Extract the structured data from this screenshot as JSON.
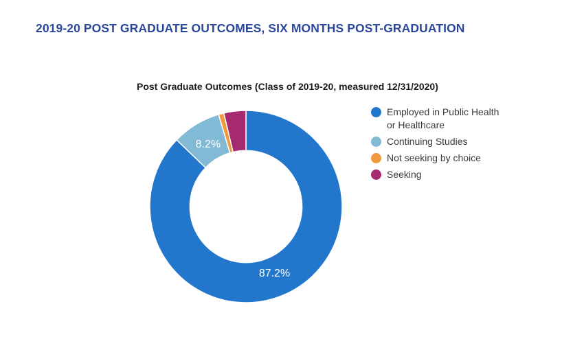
{
  "page_title": "2019-20 POST GRADUATE OUTCOMES, SIX MONTHS POST-GRADUATION",
  "colors": {
    "background": "#ffffff",
    "page_title": "#2a479c",
    "chart_title": "#1c1c1c",
    "legend_text": "#3b3b3b",
    "data_label_text": "#ffffff",
    "segment_separator": "#ffffff"
  },
  "chart_data": {
    "type": "pie",
    "subtype": "donut",
    "title": "Post Graduate Outcomes (Class of 2019-20, measured 12/31/2020)",
    "categories": [
      "Employed in Public Health or Healthcare",
      "Continuing Studies",
      "Not seeking by choice",
      "Seeking"
    ],
    "values": [
      87.2,
      8.2,
      0.9,
      3.7
    ],
    "unit": "%",
    "colors": [
      "#2277cd",
      "#82b9d4",
      "#f0993d",
      "#a62a70"
    ],
    "data_labels": [
      "87.2%",
      "8.2%",
      "",
      ""
    ],
    "legend_position": "right",
    "start_angle_deg": 0,
    "direction": "clockwise",
    "inner_radius_ratio": 0.583
  }
}
